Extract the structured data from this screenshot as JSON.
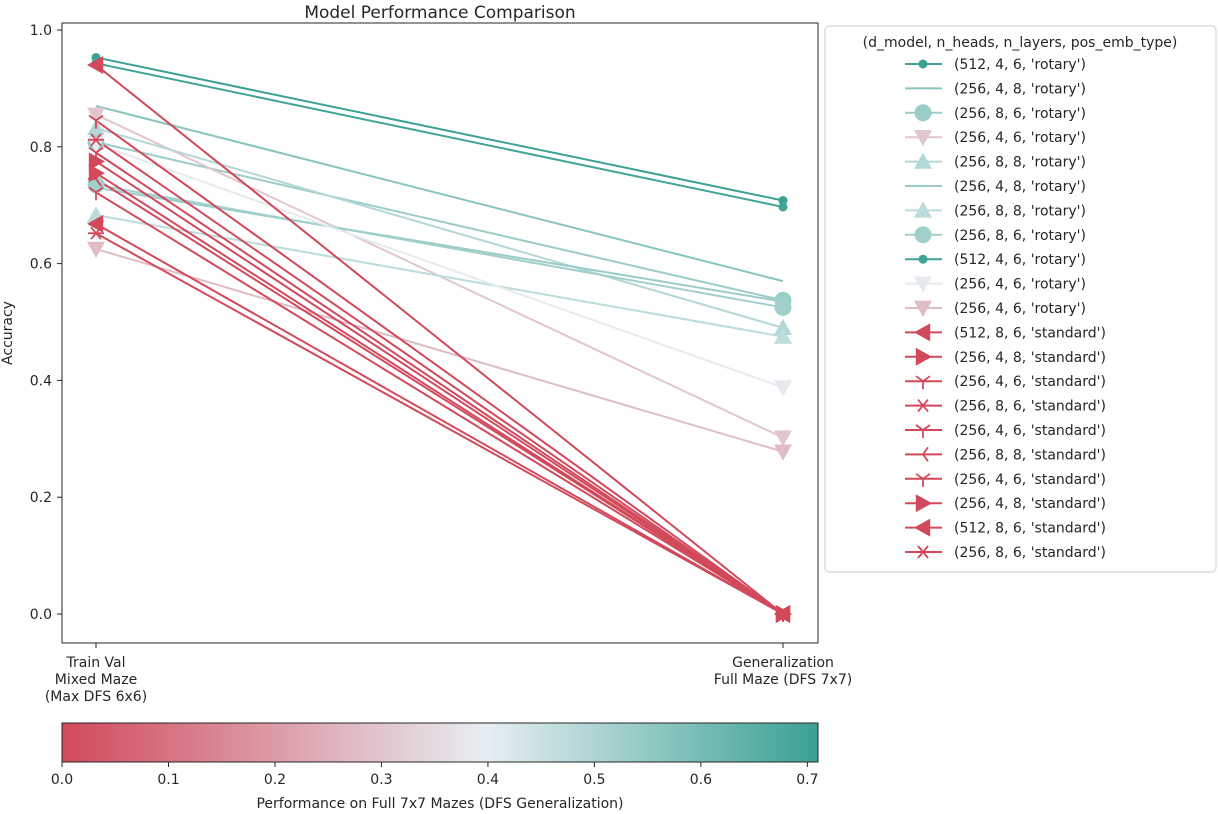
{
  "chart_data": {
    "type": "line",
    "title": "Model Performance Comparison",
    "ylabel": "Accuracy",
    "xlabel": "",
    "categories": [
      "Train Val\nMixed Maze\n(Max DFS 6x6)",
      "Generalization\nFull Maze (DFS 7x7)"
    ],
    "ylim": [
      -0.05,
      1.0
    ],
    "yticks": [
      0.0,
      0.2,
      0.4,
      0.6,
      0.8,
      1.0
    ],
    "grid": false,
    "legend_title": "(d_model, n_heads, n_layers, pos_emb_type)",
    "legend_position": "outside-right",
    "series": [
      {
        "name": "(512, 4, 6, 'rotary')",
        "marker": "circle-small",
        "values": [
          0.953,
          0.708
        ]
      },
      {
        "name": "(256, 4, 8, 'rotary')",
        "marker": "none",
        "values": [
          0.87,
          0.57
        ]
      },
      {
        "name": "(256, 8, 6, 'rotary')",
        "marker": "circle",
        "values": [
          0.808,
          0.537
        ]
      },
      {
        "name": "(256, 4, 6, 'rotary')",
        "marker": "triangle-down",
        "values": [
          0.855,
          0.302
        ]
      },
      {
        "name": "(256, 8, 8, 'rotary')",
        "marker": "triangle-up",
        "values": [
          0.832,
          0.49
        ]
      },
      {
        "name": "(256, 4, 8, 'rotary')",
        "marker": "none",
        "values": [
          0.73,
          0.535
        ]
      },
      {
        "name": "(256, 8, 8, 'rotary')",
        "marker": "triangle-up",
        "values": [
          0.683,
          0.475
        ]
      },
      {
        "name": "(256, 8, 6, 'rotary')",
        "marker": "circle",
        "values": [
          0.735,
          0.525
        ]
      },
      {
        "name": "(512, 4, 6, 'rotary')",
        "marker": "circle-small",
        "values": [
          0.943,
          0.697
        ]
      },
      {
        "name": "(256, 4, 6, 'rotary')",
        "marker": "triangle-down",
        "values": [
          0.805,
          0.388
        ]
      },
      {
        "name": "(256, 4, 6, 'rotary')",
        "marker": "triangle-down",
        "values": [
          0.625,
          0.278
        ]
      },
      {
        "name": "(512, 8, 6, 'standard')",
        "marker": "triangle-left",
        "values": [
          0.94,
          0.0
        ]
      },
      {
        "name": "(256, 4, 8, 'standard')",
        "marker": "triangle-right",
        "values": [
          0.775,
          0.0
        ]
      },
      {
        "name": "(256, 4, 6, 'standard')",
        "marker": "tri-down",
        "values": [
          0.845,
          0.0
        ]
      },
      {
        "name": "(256, 8, 6, 'standard')",
        "marker": "star",
        "values": [
          0.812,
          0.0
        ]
      },
      {
        "name": "(256, 4, 6, 'standard')",
        "marker": "tri-down",
        "values": [
          0.79,
          0.0
        ]
      },
      {
        "name": "(256, 8, 8, 'standard')",
        "marker": "tri-left",
        "values": [
          0.745,
          0.0
        ]
      },
      {
        "name": "(256, 4, 6, 'standard')",
        "marker": "tri-down",
        "values": [
          0.722,
          0.0
        ]
      },
      {
        "name": "(256, 4, 8, 'standard')",
        "marker": "triangle-right",
        "values": [
          0.755,
          0.0
        ]
      },
      {
        "name": "(512, 8, 6, 'standard')",
        "marker": "triangle-left",
        "values": [
          0.668,
          0.0
        ]
      },
      {
        "name": "(256, 8, 6, 'standard')",
        "marker": "star",
        "values": [
          0.652,
          0.0
        ]
      }
    ],
    "colorbar": {
      "label": "Performance on Full 7x7 Mazes (DFS Generalization)",
      "range": [
        0.0,
        0.71
      ],
      "ticks": [
        "0.0",
        "0.1",
        "0.2",
        "0.3",
        "0.4",
        "0.5",
        "0.6",
        "0.7"
      ],
      "colors": [
        "#d1495b",
        "#e7eef3",
        "#3aa193"
      ]
    }
  }
}
